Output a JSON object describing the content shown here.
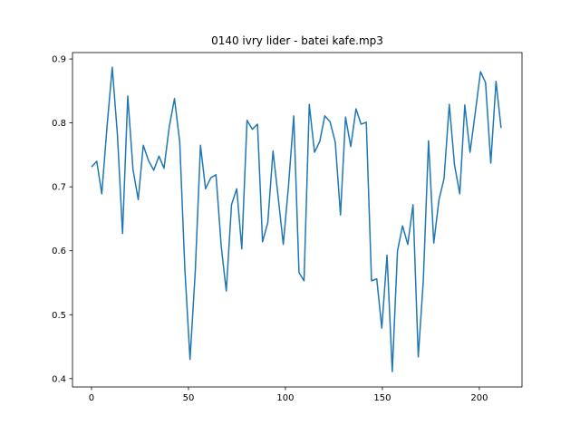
{
  "chart_data": {
    "type": "line",
    "title": "0140 ivry lider - batei kafe.mp3",
    "x": [
      0,
      2.7,
      5.3,
      8.0,
      10.7,
      13.4,
      16.0,
      18.7,
      21.4,
      24.1,
      26.7,
      29.4,
      32.1,
      34.8,
      37.4,
      40.1,
      42.8,
      45.5,
      48.1,
      50.8,
      53.5,
      56.2,
      58.8,
      61.5,
      64.2,
      66.9,
      69.5,
      72.2,
      74.9,
      77.5,
      80.2,
      82.9,
      85.6,
      88.2,
      90.9,
      93.6,
      96.3,
      98.9,
      101.6,
      104.3,
      107.0,
      109.6,
      112.3,
      115.0,
      117.7,
      120.3,
      123.0,
      125.7,
      128.4,
      131.0,
      133.7,
      136.4,
      139.0,
      141.7,
      144.4,
      147.1,
      149.7,
      152.4,
      155.1,
      157.8,
      160.4,
      163.1,
      165.8,
      168.5,
      171.1,
      173.8,
      176.5,
      179.2,
      181.8,
      184.5,
      187.2,
      189.9,
      192.5,
      195.2,
      197.9,
      200.6,
      203.2,
      205.9,
      208.6,
      211.2
    ],
    "series": [
      {
        "color": "#1f77b4",
        "values": [
          0.731,
          0.74,
          0.689,
          0.794,
          0.887,
          0.78,
          0.627,
          0.842,
          0.727,
          0.68,
          0.765,
          0.741,
          0.726,
          0.748,
          0.729,
          0.794,
          0.838,
          0.77,
          0.574,
          0.43,
          0.567,
          0.765,
          0.697,
          0.714,
          0.719,
          0.607,
          0.537,
          0.672,
          0.697,
          0.603,
          0.804,
          0.79,
          0.798,
          0.614,
          0.644,
          0.756,
          0.683,
          0.61,
          0.702,
          0.811,
          0.566,
          0.553,
          0.829,
          0.754,
          0.771,
          0.811,
          0.802,
          0.77,
          0.656,
          0.809,
          0.763,
          0.822,
          0.798,
          0.801,
          0.553,
          0.556,
          0.479,
          0.593,
          0.411,
          0.6,
          0.639,
          0.61,
          0.672,
          0.434,
          0.553,
          0.772,
          0.612,
          0.68,
          0.713,
          0.829,
          0.734,
          0.689,
          0.828,
          0.754,
          0.816,
          0.88,
          0.863,
          0.737,
          0.865,
          0.792
        ]
      }
    ],
    "xlim": [
      -9.8,
      222
    ],
    "ylim": [
      0.387,
      0.91
    ],
    "xticks": [
      0,
      50,
      100,
      150,
      200
    ],
    "yticks": [
      0.4,
      0.5,
      0.6,
      0.7,
      0.8,
      0.9
    ]
  }
}
